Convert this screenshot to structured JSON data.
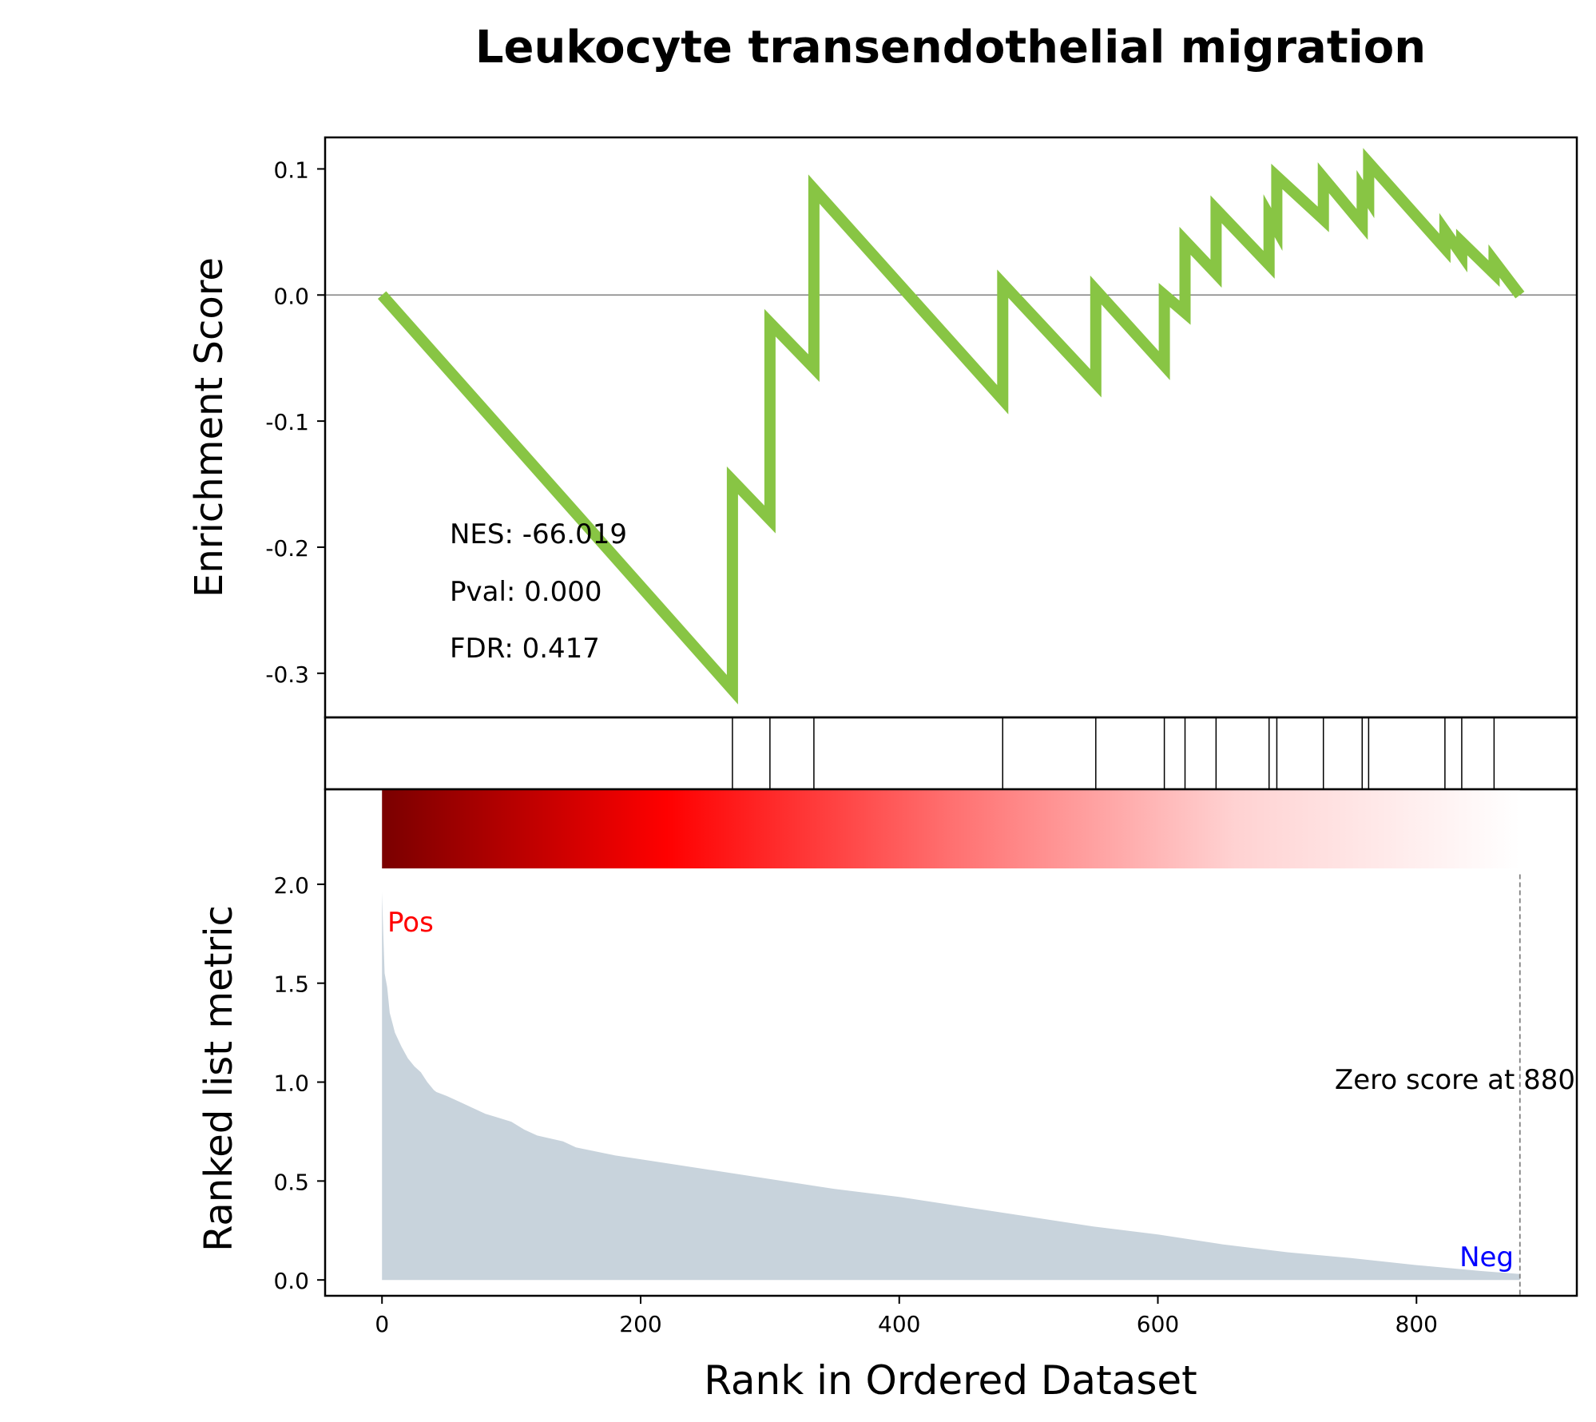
{
  "title": "Leukocyte transendothelial migration",
  "chart_data": [
    {
      "type": "line",
      "panel": "enrichment-score",
      "ylabel": "Enrichment Score",
      "ylim": [
        -0.335,
        0.125
      ],
      "yticks": [
        0.1,
        0.0,
        -0.1,
        -0.2,
        -0.3
      ],
      "ytick_labels": [
        "0.1",
        "0.0",
        "-0.1",
        "-0.2",
        "-0.3"
      ],
      "xlim": [
        -44,
        924
      ],
      "zero_line": true,
      "color": "#88C544",
      "series": [
        {
          "x": [
            0,
            271,
            271,
            300,
            300,
            334,
            334,
            480,
            480,
            552,
            552,
            605,
            605,
            621,
            621,
            645,
            645,
            686,
            686,
            692,
            692,
            728,
            728,
            758,
            758,
            763,
            763,
            822,
            822,
            835,
            835,
            860,
            860,
            880
          ],
          "y": [
            0.0,
            -0.313,
            -0.147,
            -0.178,
            -0.022,
            -0.058,
            0.084,
            -0.083,
            0.009,
            -0.07,
            0.004,
            -0.056,
            0.0,
            -0.014,
            0.043,
            0.017,
            0.068,
            0.024,
            0.063,
            0.052,
            0.094,
            0.06,
            0.093,
            0.056,
            0.084,
            0.076,
            0.105,
            0.037,
            0.051,
            0.032,
            0.042,
            0.017,
            0.027,
            0.0
          ]
        }
      ],
      "annotations": [
        "NES: -66.019",
        "Pval: 0.000",
        "FDR: 0.417"
      ]
    },
    {
      "type": "hits",
      "panel": "gene-hits",
      "positions": [
        271,
        300,
        334,
        480,
        552,
        605,
        621,
        645,
        686,
        692,
        728,
        758,
        763,
        822,
        835,
        860
      ]
    },
    {
      "type": "area",
      "panel": "ranked-list-metric",
      "ylabel": "Ranked list metric",
      "xlabel": "Rank in Ordered Dataset",
      "ylim": [
        -0.08,
        2.48
      ],
      "yticks": [
        0.0,
        0.5,
        1.0,
        1.5,
        2.0
      ],
      "ytick_labels": [
        "0.0",
        "0.5",
        "1.0",
        "1.5",
        "2.0"
      ],
      "xlim": [
        -44,
        924
      ],
      "xticks": [
        0,
        200,
        400,
        600,
        800
      ],
      "xtick_labels": [
        "0",
        "200",
        "400",
        "600",
        "800"
      ],
      "fill_color": "#c8d3dc",
      "x": [
        0,
        1,
        2,
        4,
        6,
        8,
        10,
        15,
        20,
        25,
        30,
        35,
        40,
        42,
        50,
        60,
        70,
        80,
        90,
        100,
        110,
        120,
        140,
        150,
        180,
        200,
        250,
        300,
        350,
        400,
        450,
        500,
        550,
        600,
        650,
        700,
        750,
        800,
        850,
        880
      ],
      "values": [
        1.96,
        1.75,
        1.55,
        1.48,
        1.35,
        1.3,
        1.25,
        1.18,
        1.12,
        1.08,
        1.05,
        1.0,
        0.96,
        0.95,
        0.93,
        0.9,
        0.87,
        0.84,
        0.82,
        0.8,
        0.76,
        0.73,
        0.7,
        0.67,
        0.63,
        0.61,
        0.56,
        0.51,
        0.46,
        0.42,
        0.37,
        0.32,
        0.27,
        0.23,
        0.18,
        0.14,
        0.11,
        0.075,
        0.045,
        0.03
      ],
      "heat_bar": [
        "#7a0000",
        "#ff0000",
        "#ff7070",
        "#ffd2d2",
        "#ffffff"
      ],
      "zero_score_label": "Zero score at 880",
      "zero_score_rank": 880,
      "pos_label": "Pos",
      "neg_label": "Neg",
      "pos_color": "#ff0000",
      "neg_color": "#0000ff"
    }
  ]
}
